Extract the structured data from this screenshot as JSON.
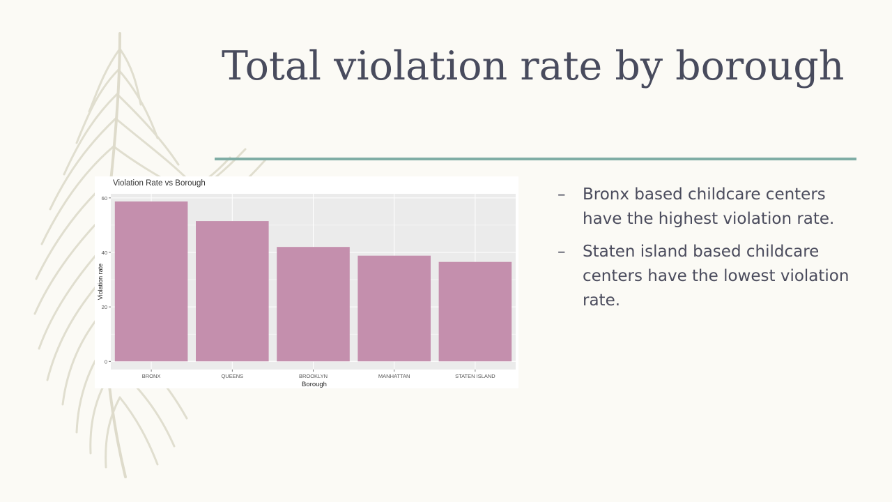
{
  "slide": {
    "title": "Total violation rate by borough",
    "accent_color": "#7fada5",
    "bullet_marker": "–",
    "bullets": [
      "Bronx based childcare centers have the highest violation rate.",
      "Staten island based childcare centers have the lowest violation rate."
    ]
  },
  "chart_data": {
    "type": "bar",
    "title": "Violation Rate vs Borough",
    "xlabel": "Borough",
    "ylabel": "Violation rate",
    "categories": [
      "BRONX",
      "QUEENS",
      "BROOKLYN",
      "MANHATTAN",
      "STATEN ISLAND"
    ],
    "values": [
      58.7,
      51.5,
      42.0,
      38.8,
      36.5
    ],
    "ylim": [
      -3,
      61.5
    ],
    "yticks": [
      0,
      20,
      40,
      60
    ],
    "grid": true,
    "legend": "none",
    "bar_color": "#c48fad",
    "plot_background": "#ebebeb"
  }
}
